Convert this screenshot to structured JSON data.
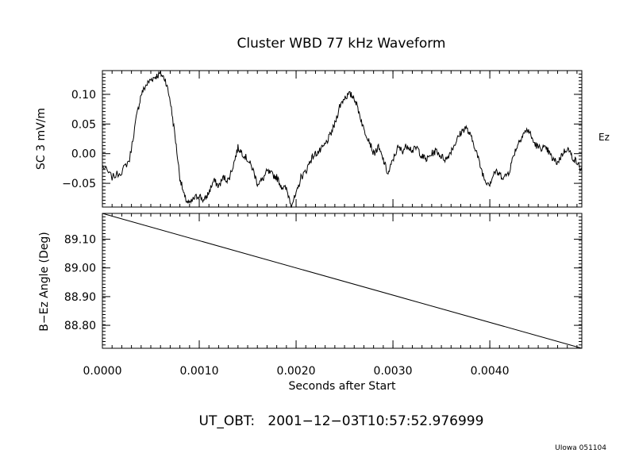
{
  "chart_data": [
    {
      "type": "line",
      "title": "Cluster WBD 77 kHz Waveform",
      "ylabel": "SC 3 mV/m",
      "series": [
        {
          "name": "Ez",
          "x": [
            0.0,
            0.0001,
            0.0002,
            0.00028,
            0.00035,
            0.0004,
            0.00045,
            0.0005,
            0.00055,
            0.0006,
            0.00065,
            0.0007,
            0.00075,
            0.0008,
            0.00085,
            0.0009,
            0.00095,
            0.001,
            0.00105,
            0.0011,
            0.00115,
            0.0012,
            0.00125,
            0.0013,
            0.00135,
            0.0014,
            0.00145,
            0.0015,
            0.00155,
            0.0016,
            0.00165,
            0.0017,
            0.00175,
            0.0018,
            0.00185,
            0.0019,
            0.00195,
            0.002,
            0.00205,
            0.0021,
            0.00215,
            0.0022,
            0.00225,
            0.0023,
            0.00235,
            0.0024,
            0.00245,
            0.0025,
            0.00255,
            0.0026,
            0.00265,
            0.0027,
            0.00275,
            0.0028,
            0.00285,
            0.0029,
            0.00295,
            0.003,
            0.00305,
            0.0031,
            0.00315,
            0.0032,
            0.00325,
            0.0033,
            0.00335,
            0.0034,
            0.00345,
            0.0035,
            0.00355,
            0.0036,
            0.00365,
            0.0037,
            0.00375,
            0.0038,
            0.00385,
            0.0039,
            0.00395,
            0.004,
            0.00405,
            0.0041,
            0.00415,
            0.0042,
            0.00425,
            0.0043,
            0.00435,
            0.0044,
            0.00445,
            0.0045,
            0.00455,
            0.0046,
            0.00465,
            0.0047,
            0.00475,
            0.0048,
            0.00485,
            0.0049,
            0.00495
          ],
          "y": [
            -0.02,
            -0.04,
            -0.03,
            -0.01,
            0.06,
            0.1,
            0.115,
            0.125,
            0.13,
            0.135,
            0.125,
            0.09,
            0.03,
            -0.04,
            -0.075,
            -0.085,
            -0.075,
            -0.07,
            -0.08,
            -0.065,
            -0.045,
            -0.055,
            -0.04,
            -0.045,
            -0.02,
            0.01,
            0.0,
            -0.01,
            -0.025,
            -0.05,
            -0.045,
            -0.03,
            -0.035,
            -0.04,
            -0.055,
            -0.06,
            -0.085,
            -0.07,
            -0.04,
            -0.03,
            -0.01,
            0.0,
            0.005,
            0.015,
            0.03,
            0.05,
            0.08,
            0.095,
            0.1,
            0.095,
            0.07,
            0.04,
            0.025,
            0.0,
            0.01,
            -0.01,
            -0.035,
            -0.01,
            0.01,
            0.005,
            0.015,
            0.005,
            0.01,
            -0.005,
            -0.01,
            0.0,
            0.005,
            -0.005,
            -0.01,
            0.005,
            0.02,
            0.035,
            0.045,
            0.03,
            0.01,
            -0.02,
            -0.045,
            -0.05,
            -0.03,
            -0.035,
            -0.04,
            -0.03,
            0.0,
            0.02,
            0.035,
            0.04,
            0.02,
            0.01,
            0.01,
            0.005,
            -0.01,
            -0.015,
            0.0,
            0.01,
            -0.005,
            -0.015,
            -0.03
          ]
        }
      ],
      "xlim": [
        0.0,
        0.00495
      ],
      "ylim": [
        -0.09,
        0.14
      ],
      "yticks": [
        0.1,
        0.05,
        0.0,
        -0.05
      ],
      "ytick_labels": [
        "0.10",
        "0.05",
        "0.00",
        "−0.05"
      ],
      "grid": false
    },
    {
      "type": "line",
      "ylabel": "B−Ez Angle (Deg)",
      "xlabel": "Seconds after Start",
      "series": [
        {
          "x": [
            0.0,
            0.00495
          ],
          "y": [
            89.19,
            88.72
          ]
        }
      ],
      "xlim": [
        0.0,
        0.00495
      ],
      "ylim": [
        88.72,
        89.19
      ],
      "xticks": [
        0.0,
        0.001,
        0.002,
        0.003,
        0.004
      ],
      "xtick_labels": [
        "0.0000",
        "0.0010",
        "0.0020",
        "0.0030",
        "0.0040"
      ],
      "yticks": [
        89.1,
        89.0,
        88.9,
        88.8
      ],
      "ytick_labels": [
        "89.10",
        "89.00",
        "88.90",
        "88.80"
      ],
      "grid": false
    }
  ],
  "timestamp": "UT_OBT:   2001−12−03T10:57:52.976999",
  "credit": "UIowa 051104"
}
